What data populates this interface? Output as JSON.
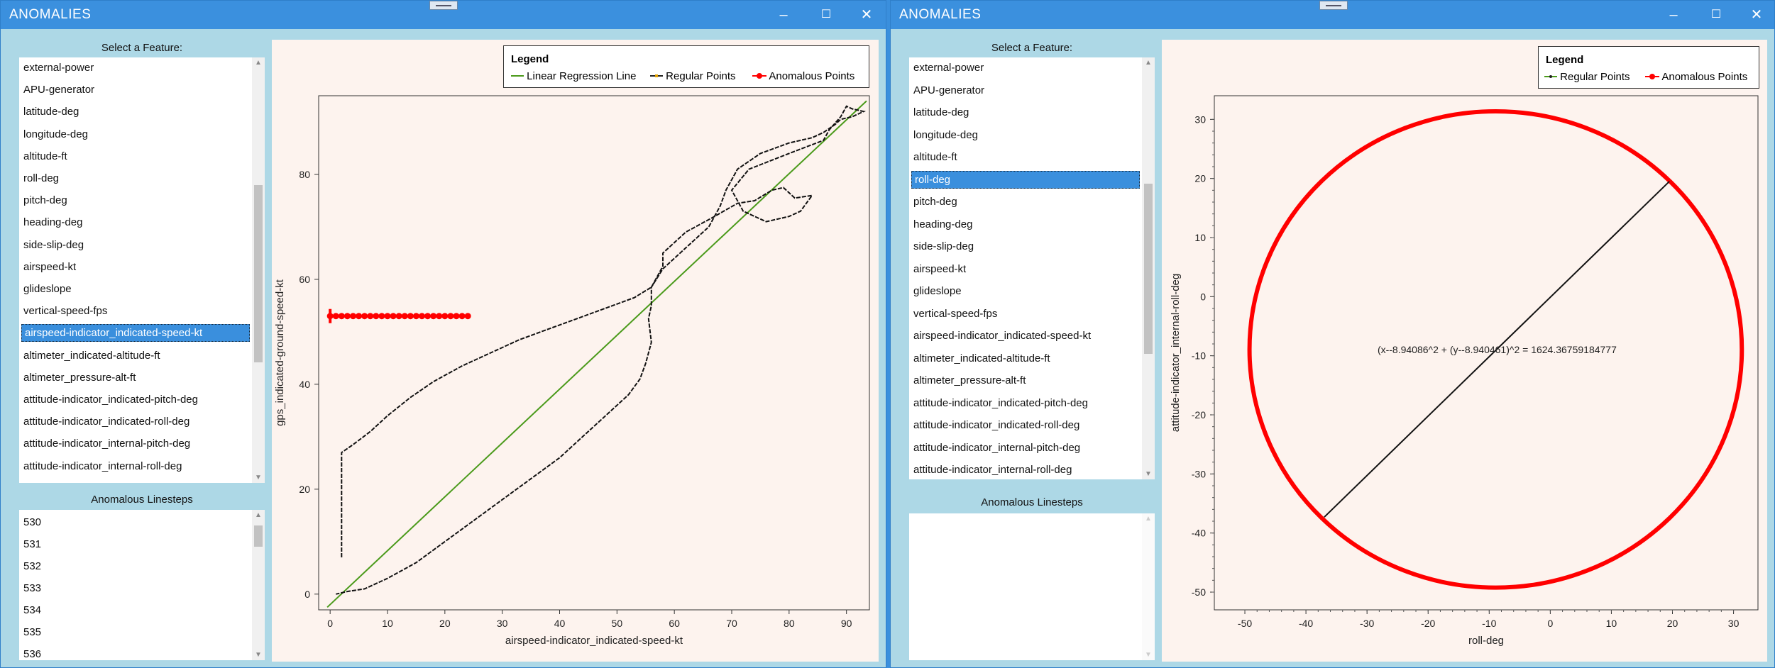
{
  "left_window": {
    "title": "ANOMALIES",
    "feature_label": "Select a Feature:",
    "features": [
      "external-power",
      "APU-generator",
      "latitude-deg",
      "longitude-deg",
      "altitude-ft",
      "roll-deg",
      "pitch-deg",
      "heading-deg",
      "side-slip-deg",
      "airspeed-kt",
      "glideslope",
      "vertical-speed-fps",
      "airspeed-indicator_indicated-speed-kt",
      "altimeter_indicated-altitude-ft",
      "altimeter_pressure-alt-ft",
      "attitude-indicator_indicated-pitch-deg",
      "attitude-indicator_indicated-roll-deg",
      "attitude-indicator_internal-pitch-deg",
      "attitude-indicator_internal-roll-deg"
    ],
    "selected_feature": "airspeed-indicator_indicated-speed-kt",
    "linesteps_label": "Anomalous Linesteps",
    "linesteps": [
      "530",
      "531",
      "532",
      "533",
      "534",
      "535",
      "536"
    ],
    "legend": {
      "title": "Legend",
      "items": [
        {
          "label": "Linear Regression Line",
          "color": "#4a9a1a"
        },
        {
          "label": "Regular Points",
          "color": "#000000"
        },
        {
          "label": "Anomalous Points",
          "color": "#ff0000"
        }
      ]
    }
  },
  "right_window": {
    "title": "ANOMALIES",
    "feature_label": "Select a Feature:",
    "features": [
      "external-power",
      "APU-generator",
      "latitude-deg",
      "longitude-deg",
      "altitude-ft",
      "roll-deg",
      "pitch-deg",
      "heading-deg",
      "side-slip-deg",
      "airspeed-kt",
      "glideslope",
      "vertical-speed-fps",
      "airspeed-indicator_indicated-speed-kt",
      "altimeter_indicated-altitude-ft",
      "altimeter_pressure-alt-ft",
      "attitude-indicator_indicated-pitch-deg",
      "attitude-indicator_indicated-roll-deg",
      "attitude-indicator_internal-pitch-deg",
      "attitude-indicator_internal-roll-deg"
    ],
    "selected_feature": "roll-deg",
    "linesteps_label": "Anomalous Linesteps",
    "linesteps": [],
    "legend": {
      "title": "Legend",
      "items": [
        {
          "label": "Regular Points",
          "color": "#000000"
        },
        {
          "label": "Anomalous Points",
          "color": "#ff0000"
        }
      ]
    }
  },
  "colors": {
    "titlebar": "#3b90de",
    "panel": "#add8e6",
    "plot_bg": "#fdf3ee",
    "selection": "#3a8fdd"
  },
  "chart_data": [
    {
      "type": "scatter",
      "title": "",
      "xlabel": "airspeed-indicator_indicated-speed-kt",
      "ylabel": "gps_indicated-ground-speed-kt",
      "xlim": [
        -2,
        94
      ],
      "ylim": [
        -3,
        95
      ],
      "xticks": [
        0,
        10,
        20,
        30,
        40,
        50,
        60,
        70,
        80,
        90
      ],
      "yticks": [
        0,
        20,
        40,
        60,
        80
      ],
      "series": [
        {
          "name": "Linear Regression Line",
          "kind": "line",
          "points": [
            [
              -0.5,
              -2.5
            ],
            [
              93.5,
              94
            ]
          ]
        },
        {
          "name": "Regular Points",
          "kind": "trace",
          "points": [
            [
              2,
              7
            ],
            [
              2,
              12
            ],
            [
              2,
              18
            ],
            [
              2,
              24
            ],
            [
              2,
              27
            ],
            [
              4,
              28.5
            ],
            [
              7,
              31
            ],
            [
              10,
              34
            ],
            [
              14,
              37.5
            ],
            [
              18,
              40.5
            ],
            [
              23,
              43.5
            ],
            [
              28,
              46
            ],
            [
              33,
              48.5
            ],
            [
              38,
              50.5
            ],
            [
              43,
              52.5
            ],
            [
              48,
              54.5
            ],
            [
              53,
              56.5
            ],
            [
              56,
              58.5
            ],
            [
              58,
              62.5
            ],
            [
              58,
              65
            ],
            [
              62,
              69
            ],
            [
              67,
              72
            ],
            [
              71,
              74.5
            ],
            [
              74,
              75
            ],
            [
              77,
              77
            ],
            [
              79,
              77.5
            ],
            [
              81,
              75.5
            ],
            [
              84,
              76
            ],
            [
              82,
              73
            ],
            [
              80,
              72
            ],
            [
              76,
              71
            ],
            [
              72,
              73
            ],
            [
              70,
              77
            ],
            [
              73,
              81
            ],
            [
              80,
              84
            ],
            [
              86,
              86.5
            ],
            [
              87,
              88.5
            ],
            [
              89,
              91
            ],
            [
              90,
              93
            ],
            [
              91,
              92.5
            ],
            [
              93,
              92
            ],
            [
              91,
              91
            ],
            [
              89,
              90.5
            ],
            [
              88,
              89.5
            ],
            [
              86,
              88
            ],
            [
              84,
              87
            ],
            [
              80,
              86
            ],
            [
              75,
              84
            ],
            [
              71,
              81
            ],
            [
              69,
              77
            ],
            [
              68,
              74
            ],
            [
              66,
              70
            ],
            [
              62,
              66
            ],
            [
              58,
              62
            ],
            [
              56,
              58.5
            ],
            [
              56,
              55
            ],
            [
              55.5,
              52.5
            ],
            [
              56,
              48
            ],
            [
              55,
              44
            ],
            [
              54,
              41
            ],
            [
              52,
              38
            ],
            [
              48,
              34
            ],
            [
              44,
              30
            ],
            [
              40,
              26
            ],
            [
              35,
              22
            ],
            [
              30,
              18
            ],
            [
              25,
              14
            ],
            [
              20,
              10
            ],
            [
              15,
              6
            ],
            [
              10,
              3
            ],
            [
              6,
              1
            ],
            [
              3,
              0.5
            ],
            [
              1,
              0
            ]
          ]
        },
        {
          "name": "Anomalous Points",
          "kind": "markers",
          "points": [
            [
              0,
              53
            ],
            [
              1,
              53
            ],
            [
              2,
              53
            ],
            [
              3,
              53
            ],
            [
              4,
              53
            ],
            [
              5,
              53
            ],
            [
              6,
              53
            ],
            [
              7,
              53
            ],
            [
              8,
              53
            ],
            [
              9,
              53
            ],
            [
              10,
              53
            ],
            [
              11,
              53
            ],
            [
              12,
              53
            ],
            [
              13,
              53
            ],
            [
              14,
              53
            ],
            [
              15,
              53
            ],
            [
              16,
              53
            ],
            [
              17,
              53
            ],
            [
              18,
              53
            ],
            [
              19,
              53
            ],
            [
              20,
              53
            ],
            [
              21,
              53
            ],
            [
              22,
              53
            ],
            [
              23,
              53
            ],
            [
              24,
              53
            ]
          ]
        }
      ]
    },
    {
      "type": "scatter",
      "title": "",
      "xlabel": "roll-deg",
      "ylabel": "attitude-indicator_internal-roll-deg",
      "xlim": [
        -55,
        34
      ],
      "ylim": [
        -53,
        34
      ],
      "xticks": [
        -50,
        -40,
        -30,
        -20,
        -10,
        0,
        10,
        20,
        30
      ],
      "yticks": [
        -50,
        -40,
        -30,
        -20,
        -10,
        0,
        10,
        20,
        30
      ],
      "annotation": "(x--8.94086^2 + (y--8.940461)^2 = 1624.36759184777",
      "circle": {
        "cx": -8.94086,
        "cy": -8.940461,
        "r": 40.3
      },
      "series": [
        {
          "name": "Regular Points",
          "kind": "line",
          "points": [
            [
              -37,
              -37.3
            ],
            [
              19.5,
              19.5
            ]
          ]
        },
        {
          "name": "Anomalous Points",
          "kind": "circle"
        }
      ]
    }
  ]
}
